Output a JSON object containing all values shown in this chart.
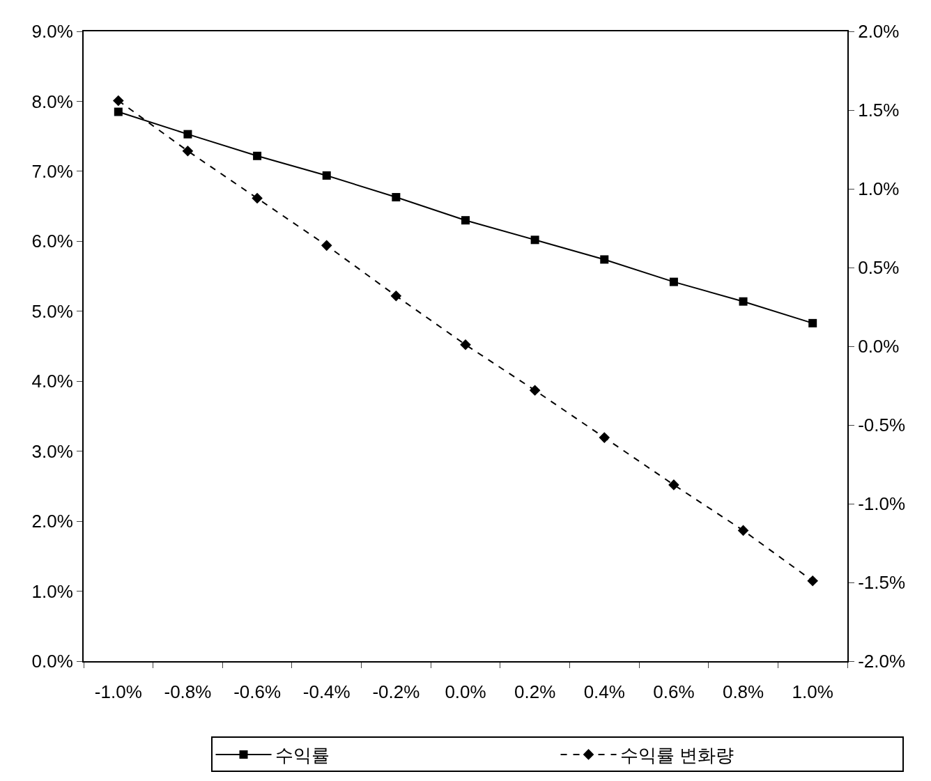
{
  "chart_data": {
    "type": "line",
    "categories": [
      "-1.0%",
      "-0.8%",
      "-0.6%",
      "-0.4%",
      "-0.2%",
      "0.0%",
      "0.2%",
      "0.4%",
      "0.6%",
      "0.8%",
      "1.0%"
    ],
    "series": [
      {
        "name": "수익률",
        "color": "#000000",
        "marker": "square",
        "line_style": "solid",
        "values": [
          7.85,
          7.53,
          7.22,
          6.94,
          6.63,
          6.3,
          6.02,
          5.74,
          5.42,
          5.14,
          4.83
        ]
      },
      {
        "name": "수익률 변화량",
        "color": "#000000",
        "marker": "diamond",
        "line_style": "dashed",
        "axis": "y2",
        "values": [
          1.56,
          1.24,
          0.94,
          0.64,
          0.32,
          0.01,
          -0.28,
          -0.58,
          -0.88,
          -1.17,
          -1.49
        ]
      }
    ],
    "ylim": [
      0,
      9
    ],
    "yticks": [
      {
        "value": 0,
        "label": "0.0%"
      },
      {
        "value": 1,
        "label": "1.0%"
      },
      {
        "value": 2,
        "label": "2.0%"
      },
      {
        "value": 3,
        "label": "3.0%"
      },
      {
        "value": 4,
        "label": "4.0%"
      },
      {
        "value": 5,
        "label": "5.0%"
      },
      {
        "value": 6,
        "label": "6.0%"
      },
      {
        "value": 7,
        "label": "7.0%"
      },
      {
        "value": 8,
        "label": "8.0%"
      },
      {
        "value": 9,
        "label": "9.0%"
      }
    ],
    "y2lim": [
      -2,
      2
    ],
    "y2ticks": [
      {
        "value": -2,
        "label": "-2.0%"
      },
      {
        "value": -1.5,
        "label": "-1.5%"
      },
      {
        "value": -1,
        "label": "-1.0%"
      },
      {
        "value": -0.5,
        "label": "-0.5%"
      },
      {
        "value": 0,
        "label": "0.0%"
      },
      {
        "value": 0.5,
        "label": "0.5%"
      },
      {
        "value": 1,
        "label": "1.0%"
      },
      {
        "value": 1.5,
        "label": "1.5%"
      },
      {
        "value": 2,
        "label": "2.0%"
      }
    ],
    "grid": false,
    "legend": "bottom"
  }
}
